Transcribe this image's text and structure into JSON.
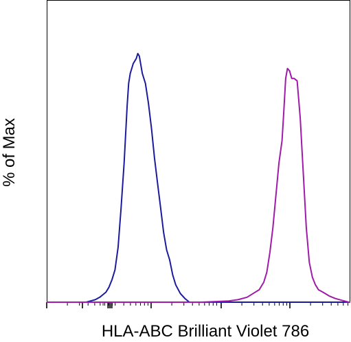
{
  "chart_data": {
    "type": "line",
    "title": "",
    "xlabel": "HLA-ABC Brilliant Violet 786",
    "ylabel": "% of Max",
    "x_scale": "log-like (fluorescence intensity, unlabeled ticks)",
    "xlim": [
      0,
      100
    ],
    "ylim": [
      0,
      100
    ],
    "grid": false,
    "legend": "none",
    "series": [
      {
        "color": "#1a1a9c",
        "x": [
          13.0,
          14.5,
          16.0,
          17.5,
          18.5,
          19.5,
          20.5,
          21.5,
          22.5,
          23.5,
          24.5,
          25.5,
          26.5,
          27.0,
          27.5,
          28.5,
          29.5,
          30.0,
          30.5,
          31.5,
          32.5,
          33.5,
          34.5,
          35.5,
          36.5,
          37.5,
          38.5,
          39.5,
          40.5,
          41.5,
          42.5,
          44.0,
          45.5,
          47.0
        ],
        "y": [
          0.0,
          0.5,
          1.0,
          2.0,
          3.0,
          4.0,
          6.0,
          9.0,
          13.0,
          22.0,
          38.0,
          56.0,
          79.0,
          88.0,
          92.0,
          96.0,
          98.0,
          100.0,
          99.0,
          92.0,
          88.0,
          80.0,
          70.0,
          58.0,
          48.0,
          38.0,
          28.0,
          21.0,
          17.0,
          11.0,
          7.0,
          3.5,
          1.5,
          0.0
        ]
      },
      {
        "color": "#a01aa9",
        "x": [
          51.0,
          55.0,
          60.0,
          63.0,
          66.0,
          68.0,
          70.0,
          71.5,
          72.5,
          73.5,
          74.5,
          75.5,
          76.5,
          77.5,
          78.0,
          78.7,
          79.3,
          80.0,
          80.7,
          81.5,
          82.5,
          83.5,
          84.5,
          85.5,
          86.5,
          87.5,
          88.5,
          89.5,
          91.0,
          93.0,
          95.0,
          97.0,
          99.5
        ],
        "y": [
          0.0,
          0.2,
          0.5,
          1.0,
          2.0,
          3.5,
          5.0,
          8.0,
          12.0,
          20.0,
          30.0,
          43.0,
          56.0,
          65.0,
          75.0,
          90.0,
          94.0,
          93.0,
          90.0,
          90.0,
          89.0,
          74.0,
          52.0,
          30.0,
          16.0,
          10.0,
          7.0,
          5.0,
          4.0,
          2.5,
          1.5,
          0.8,
          0.0
        ]
      }
    ]
  }
}
